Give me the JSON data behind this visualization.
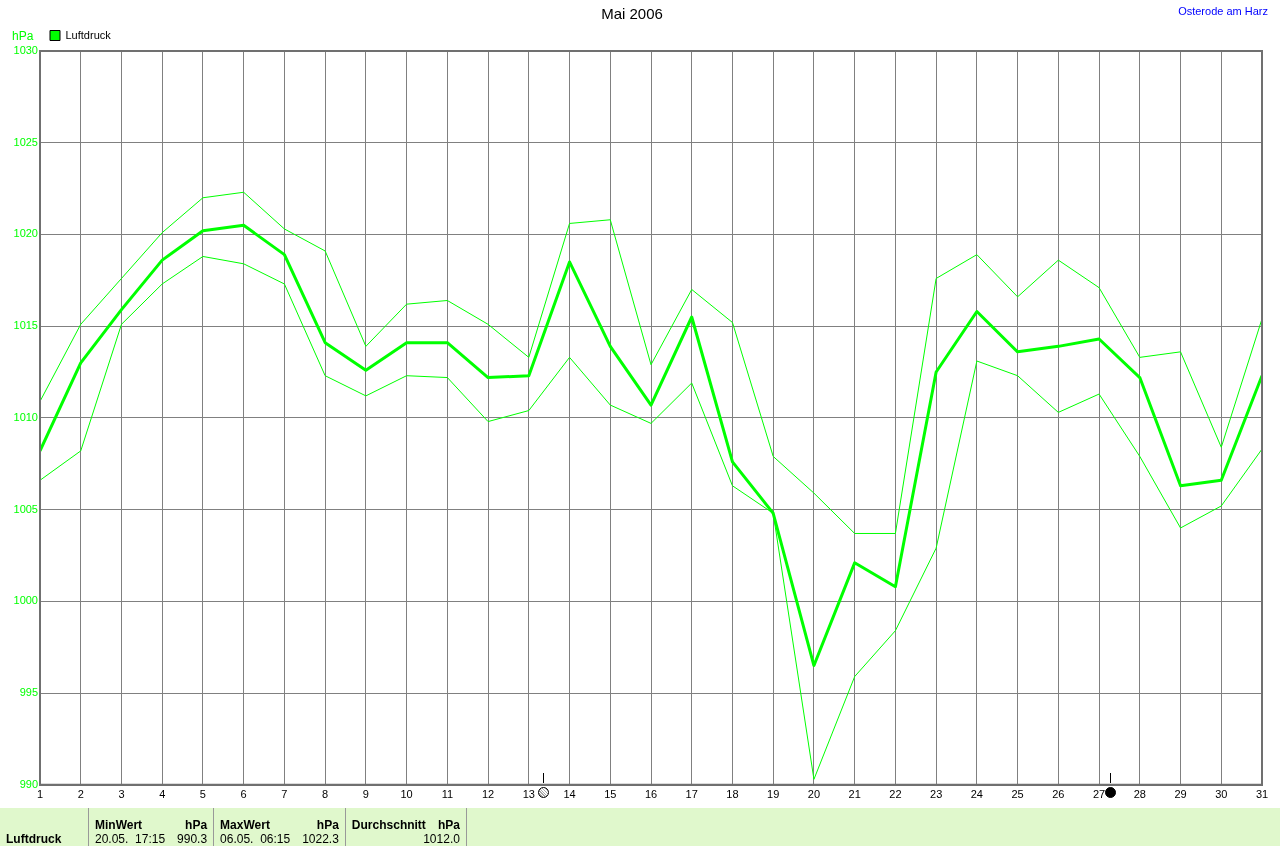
{
  "chart_data": {
    "type": "line",
    "title": "Mai 2006",
    "ylabel": "hPa",
    "x": [
      1,
      2,
      3,
      4,
      5,
      6,
      7,
      8,
      9,
      10,
      11,
      12,
      13,
      14,
      15,
      16,
      17,
      18,
      19,
      20,
      21,
      22,
      23,
      24,
      25,
      26,
      27,
      28,
      29,
      30,
      31
    ],
    "series": [
      {
        "color": "#00ff00",
        "values": [
          1010.9,
          1015.1,
          1017.6,
          1020.1,
          1022.0,
          1022.3,
          1020.3,
          1019.1,
          1013.9,
          1016.2,
          1016.4,
          1015.1,
          1013.3,
          1020.6,
          1020.8,
          1012.9,
          1017.0,
          1015.2,
          1007.9,
          1005.9,
          1003.7,
          1003.7,
          1017.6,
          1018.9,
          1016.6,
          1018.6,
          1017.1,
          1013.3,
          1013.6,
          1008.4,
          1015.4
        ]
      },
      {
        "name": "Luftdruck",
        "color": "#00ff00",
        "values": [
          1008.2,
          1013.0,
          1015.9,
          1018.6,
          1020.2,
          1020.5,
          1018.9,
          1014.1,
          1012.6,
          1014.1,
          1014.1,
          1012.2,
          1012.3,
          1018.5,
          1013.9,
          1010.7,
          1015.5,
          1007.6,
          1004.8,
          996.5,
          1002.1,
          1000.8,
          1012.5,
          1015.8,
          1013.6,
          1013.9,
          1014.3,
          1012.2,
          1006.3,
          1006.6,
          1012.3
        ]
      },
      {
        "color": "#00ff00",
        "values": [
          1006.6,
          1008.2,
          1015.1,
          1017.3,
          1018.8,
          1018.4,
          1017.3,
          1012.3,
          1011.2,
          1012.3,
          1012.2,
          1009.8,
          1010.4,
          1013.3,
          1010.7,
          1009.7,
          1011.9,
          1006.3,
          1004.8,
          990.3,
          995.9,
          998.4,
          1002.9,
          1013.1,
          1012.3,
          1010.3,
          1011.3,
          1007.9,
          1004.0,
          1005.2,
          1008.3
        ]
      }
    ],
    "xlim": [
      1,
      31
    ],
    "xticks": [
      1,
      2,
      3,
      4,
      5,
      6,
      7,
      8,
      9,
      10,
      11,
      12,
      13,
      14,
      15,
      16,
      17,
      18,
      19,
      20,
      21,
      22,
      23,
      24,
      25,
      26,
      27,
      28,
      29,
      30,
      31
    ],
    "ylim": [
      990,
      1030
    ],
    "yticks": [
      990,
      995,
      1000,
      1005,
      1010,
      1015,
      1020,
      1025,
      1030
    ],
    "grid": true,
    "legend": "top left",
    "marker": "none",
    "line_style": "solid",
    "annotations": [
      "Osterode am Harz",
      "Luftdruck",
      "MinWert",
      "hPa",
      "20.05.  17:15",
      "990.3",
      "MaxWert",
      "hPa",
      "06.05.  06:15",
      "1022.3",
      "Durchschnitt",
      "hPa",
      "1012.0"
    ]
  }
}
